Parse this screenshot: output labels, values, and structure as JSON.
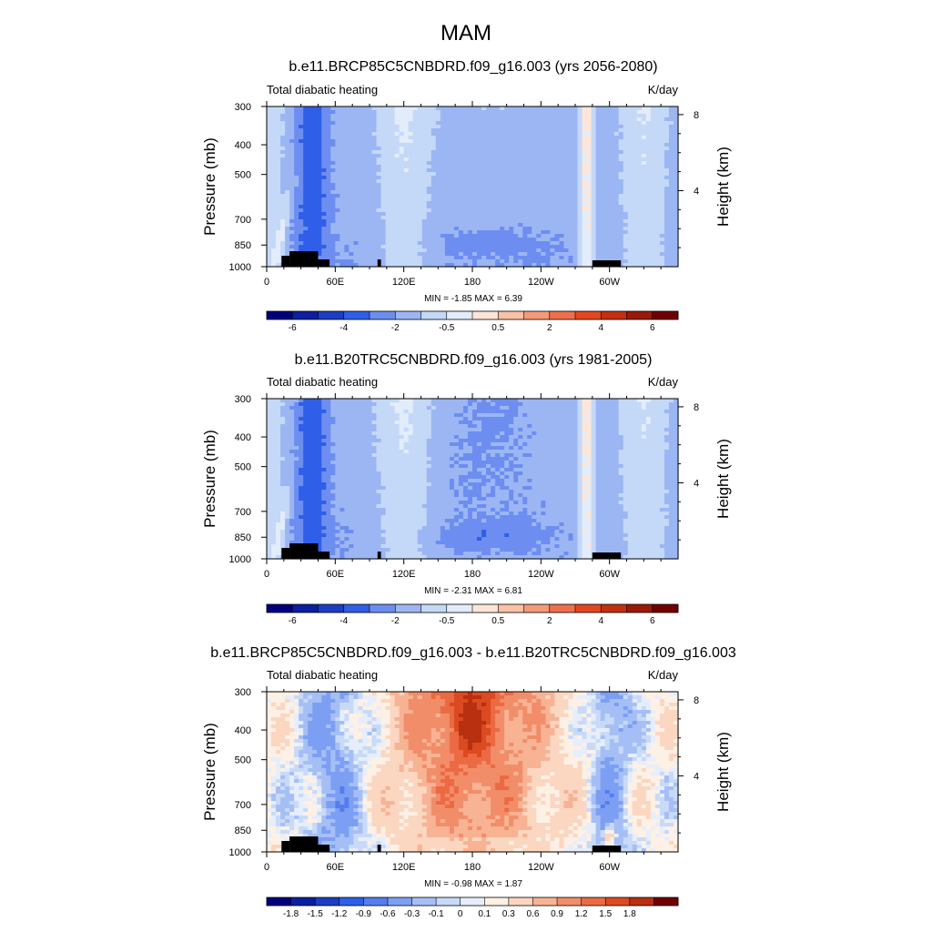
{
  "figure": {
    "title": "MAM",
    "panels": [
      {
        "title": "b.e11.BRCP85C5CNBDRD.f09_g16.003 (yrs 2056-2080)",
        "left_label": "Total diabatic heating",
        "right_label": "K/day",
        "stats": "MIN =  -1.85  MAX =   6.39",
        "levels": [
          "-6",
          "-4",
          "-2",
          "-0.5",
          "0.5",
          "2",
          "4",
          "6"
        ]
      },
      {
        "title": "b.e11.B20TRC5CNBDRD.f09_g16.003 (yrs 1981-2005)",
        "left_label": "Total diabatic heating",
        "right_label": "K/day",
        "stats": "MIN =  -2.31  MAX =   6.81",
        "levels": [
          "-6",
          "-4",
          "-2",
          "-0.5",
          "0.5",
          "2",
          "4",
          "6"
        ]
      },
      {
        "title": "b.e11.BRCP85C5CNBDRD.f09_g16.003 - b.e11.B20TRC5CNBDRD.f09_g16.003",
        "left_label": "Total diabatic heating",
        "right_label": "K/day",
        "stats": "MIN =  -0.98  MAX =   1.87",
        "levels": [
          "-1.8",
          "-1.5",
          "-1.2",
          "-0.9",
          "-0.6",
          "-0.3",
          "-0.1",
          "0",
          "0.1",
          "0.3",
          "0.6",
          "0.9",
          "1.2",
          "1.5",
          "1.8"
        ]
      }
    ]
  },
  "chart_data": {
    "type": "heatmap",
    "title": "MAM",
    "variable": "Total diabatic heating",
    "units": "K/day",
    "xlabel": "",
    "ylabel": "Pressure (mb)",
    "ylabel_right": "Height (km)",
    "x_ticks": [
      "0",
      "60E",
      "120E",
      "180",
      "120W",
      "60W"
    ],
    "x_tick_values": [
      0,
      60,
      120,
      180,
      240,
      300
    ],
    "xlim": [
      0,
      360
    ],
    "y_ticks": [
      "300",
      "400",
      "500",
      "700",
      "850",
      "1000"
    ],
    "y_tick_values": [
      300,
      400,
      500,
      700,
      850,
      1000
    ],
    "ylim": [
      1000,
      300
    ],
    "height_ticks": [
      "8",
      "4"
    ],
    "height_tick_values": [
      8,
      4
    ],
    "colorbar_levels_full": [
      -6,
      -4,
      -2,
      -0.5,
      0.5,
      2,
      4,
      6
    ],
    "colorbar_levels_diff": [
      -1.8,
      -1.5,
      -1.2,
      -0.9,
      -0.6,
      -0.3,
      -0.1,
      0,
      0.1,
      0.3,
      0.6,
      0.9,
      1.2,
      1.5,
      1.8
    ],
    "panels": [
      {
        "name": "b.e11.BRCP85C5CNBDRD.f09_g16.003 (yrs 2056-2080)",
        "min": -1.85,
        "max": 6.39
      },
      {
        "name": "b.e11.B20TRC5CNBDRD.f09_g16.003 (yrs 1981-2005)",
        "min": -2.31,
        "max": 6.81
      },
      {
        "name": "b.e11.BRCP85C5CNBDRD.f09_g16.003 - b.e11.B20TRC5CNBDRD.f09_g16.003",
        "min": -0.98,
        "max": 1.87
      }
    ],
    "colors": {
      "full": [
        "#00007f",
        "#0c1ea1",
        "#1c3dc4",
        "#2f5fe8",
        "#6d8ef0",
        "#9cb6f4",
        "#c4d8f7",
        "#e2ecfa",
        "#fde6d8",
        "#f9c1a5",
        "#f49a78",
        "#ef6f4c",
        "#e4471f",
        "#c2300f",
        "#9a1a06",
        "#700000"
      ],
      "diff": [
        "#00007f",
        "#0c1ea1",
        "#1c3dc4",
        "#2f5fe8",
        "#557df0",
        "#7d9ff3",
        "#a5bff6",
        "#c8daf8",
        "#e6eefb",
        "#fdf0e5",
        "#fbd6c0",
        "#f7b394",
        "#f28d69",
        "#ec6a43",
        "#dc4a22",
        "#b8300f",
        "#700000"
      ]
    }
  }
}
